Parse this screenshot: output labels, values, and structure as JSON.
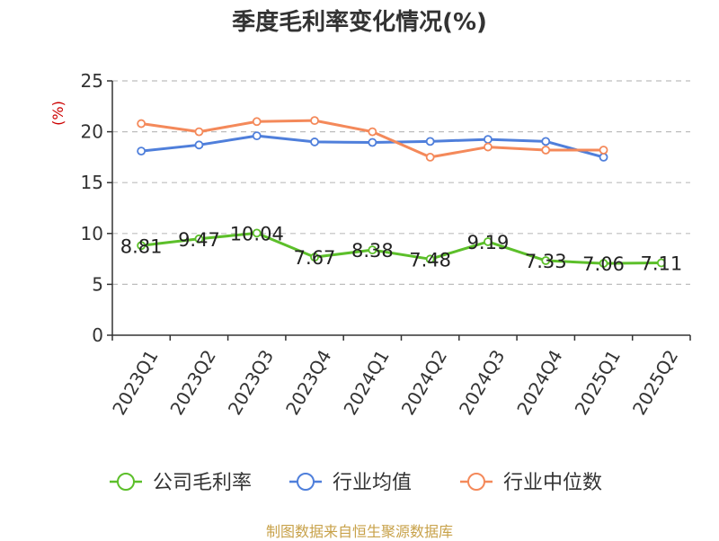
{
  "chart_data": {
    "type": "line",
    "title": "季度毛利率变化情况(%)",
    "ylabel": "(%)",
    "ylim": [
      0,
      25
    ],
    "yticks": [
      0,
      5,
      10,
      15,
      20,
      25
    ],
    "grid": true,
    "legend_position": "bottom",
    "categories": [
      "2023Q1",
      "2023Q2",
      "2023Q3",
      "2023Q4",
      "2024Q1",
      "2024Q2",
      "2024Q3",
      "2024Q4",
      "2025Q1",
      "2025Q2"
    ],
    "series": [
      {
        "name": "公司毛利率",
        "color": "#5cbf2a",
        "values": [
          8.81,
          9.47,
          10.04,
          7.67,
          8.38,
          7.48,
          9.19,
          7.33,
          7.06,
          7.11
        ],
        "labels": [
          "8.81",
          "9.47",
          "10.04",
          "7.67",
          "8.38",
          "7.48",
          "9.19",
          "7.33",
          "7.06",
          "7.11"
        ]
      },
      {
        "name": "行业均值",
        "color": "#4f7fdb",
        "values": [
          18.1,
          18.7,
          19.6,
          19.0,
          18.95,
          19.05,
          19.25,
          19.05,
          17.5,
          null
        ]
      },
      {
        "name": "行业中位数",
        "color": "#f4895a",
        "values": [
          20.8,
          20.0,
          21.0,
          21.1,
          20.0,
          17.5,
          18.5,
          18.2,
          18.2,
          null
        ]
      }
    ]
  },
  "footer": {
    "source": "制图数据来自恒生聚源数据库"
  }
}
